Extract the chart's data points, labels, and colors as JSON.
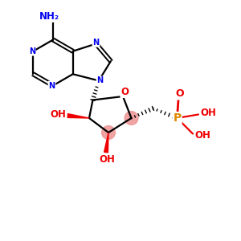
{
  "bg_color": "#ffffff",
  "bond_color": "#000000",
  "n_color": "#0000ee",
  "o_color": "#ee0000",
  "p_color": "#dd8800",
  "nh2_label": "NH₂",
  "oh_label": "OH",
  "o_label": "O",
  "p_label": "P",
  "n_label": "N",
  "figsize": [
    3.0,
    3.0
  ],
  "dpi": 100,
  "pink_color": "#ee9999"
}
